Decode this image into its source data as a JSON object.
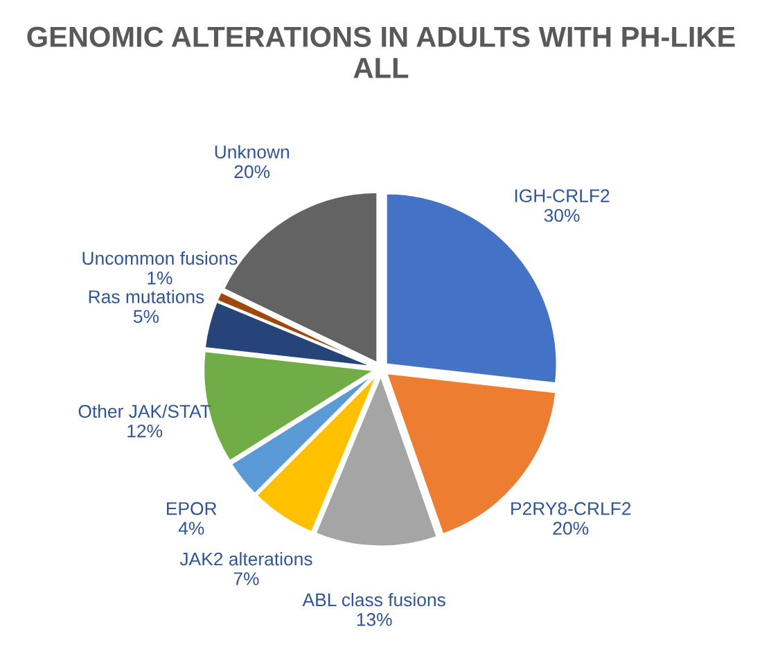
{
  "chart_data": {
    "type": "pie",
    "title": "GENOMIC ALTERATIONS IN ADULTS WITH PH-LIKE ALL",
    "categories": [
      "IGH-CRLF2",
      "P2RY8-CRLF2",
      "ABL class fusions",
      "JAK2 alterations",
      "EPOR",
      "Other JAK/STAT",
      "Ras mutations",
      "Uncommon fusions",
      "Unknown"
    ],
    "values": [
      30,
      20,
      13,
      7,
      4,
      12,
      5,
      1,
      20
    ],
    "value_labels": [
      "30%",
      "20%",
      "13%",
      "7%",
      "4%",
      "12%",
      "5%",
      "1%",
      "20%"
    ],
    "colors": [
      "#4472c4",
      "#ed7d31",
      "#a5a5a5",
      "#ffc000",
      "#5b9bd5",
      "#70ad47",
      "#264478",
      "#9e480e",
      "#636363"
    ],
    "legend": false
  }
}
